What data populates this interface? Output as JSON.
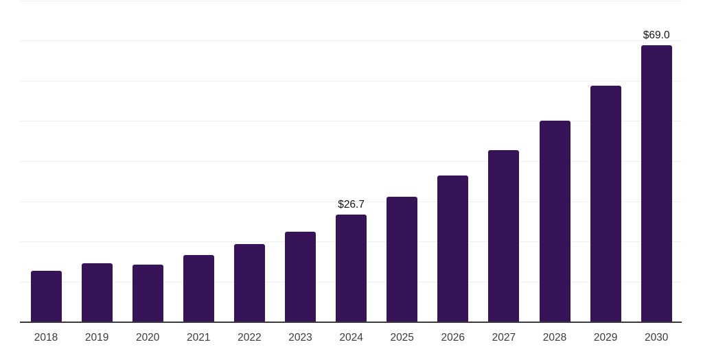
{
  "chart_data": {
    "type": "bar",
    "title": "",
    "categories": [
      "2018",
      "2019",
      "2020",
      "2021",
      "2022",
      "2023",
      "2024",
      "2025",
      "2026",
      "2027",
      "2028",
      "2029",
      "2030"
    ],
    "values": [
      12.8,
      14.6,
      14.3,
      16.7,
      19.4,
      22.6,
      26.7,
      31.2,
      36.5,
      42.8,
      50.1,
      58.8,
      69.0
    ],
    "data_labels": [
      {
        "category": "2024",
        "text": "$26.7"
      },
      {
        "category": "2030",
        "text": "$69.0"
      }
    ],
    "xlabel": "",
    "ylabel": "",
    "ylim": [
      0,
      80
    ],
    "gridline_step": 10,
    "grid": "horizontal, light gray, no y tick labels",
    "legend": "none",
    "value_prefix": "$"
  },
  "colors": {
    "bar": "#371357",
    "axis_line": "#3a3a40",
    "gridline": "#f0f0f0",
    "x_label_text": "#3a3a3a",
    "value_label_text": "#141414",
    "background": "#ffffff"
  }
}
